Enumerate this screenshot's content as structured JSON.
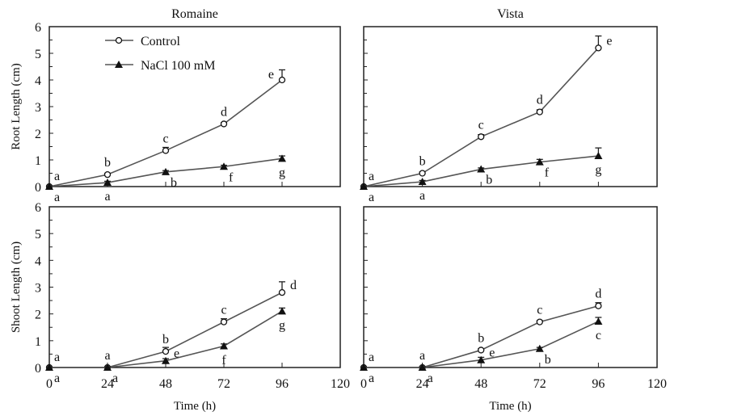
{
  "chart_data": [
    {
      "type": "line",
      "title": "Romaine",
      "xlabel": "",
      "ylabel": "Root Length (cm)",
      "xlim": [
        0,
        120
      ],
      "ylim": [
        0,
        6
      ],
      "xticks": [
        0,
        24,
        48,
        72,
        96,
        120
      ],
      "yticks": [
        0,
        1,
        2,
        3,
        4,
        5,
        6
      ],
      "x": [
        0,
        24,
        48,
        72,
        96
      ],
      "series": [
        {
          "name": "Control",
          "marker": "open-circle",
          "values": [
            0,
            0.45,
            1.35,
            2.35,
            4.0
          ],
          "error": [
            0.03,
            0.05,
            0.12,
            0.05,
            0.38
          ],
          "letters": [
            "a",
            "b",
            "c",
            "d",
            "e"
          ],
          "letter_pos": [
            "above-right",
            "above",
            "above",
            "above",
            "left"
          ]
        },
        {
          "name": "NaCl 100 mM",
          "marker": "filled-triangle",
          "values": [
            0,
            0.15,
            0.55,
            0.75,
            1.05
          ],
          "error": [
            0.03,
            0.05,
            0.05,
            0.05,
            0.1
          ],
          "letters": [
            "a",
            "a",
            "b",
            "f",
            "g"
          ],
          "letter_pos": [
            "below-right",
            "below",
            "below-right",
            "below-right",
            "below"
          ]
        }
      ]
    },
    {
      "type": "line",
      "title": "Vista",
      "xlabel": "",
      "ylabel": "",
      "xlim": [
        0,
        120
      ],
      "ylim": [
        0,
        6
      ],
      "xticks": [
        0,
        24,
        48,
        72,
        96,
        120
      ],
      "yticks": [
        0,
        1,
        2,
        3,
        4,
        5,
        6
      ],
      "x": [
        0,
        24,
        48,
        72,
        96
      ],
      "series": [
        {
          "name": "Control",
          "marker": "open-circle",
          "values": [
            0,
            0.5,
            1.87,
            2.8,
            5.2
          ],
          "error": [
            0.03,
            0.05,
            0.08,
            0.08,
            0.45
          ],
          "letters": [
            "a",
            "b",
            "c",
            "d",
            "e"
          ],
          "letter_pos": [
            "above-right",
            "above",
            "above",
            "above",
            "right"
          ]
        },
        {
          "name": "NaCl 100 mM",
          "marker": "filled-triangle",
          "values": [
            0,
            0.18,
            0.65,
            0.92,
            1.15
          ],
          "error": [
            0.03,
            0.05,
            0.05,
            0.1,
            0.3
          ],
          "letters": [
            "a",
            "a",
            "b",
            "f",
            "g"
          ],
          "letter_pos": [
            "below-right",
            "below",
            "below-right",
            "below-right",
            "below"
          ]
        }
      ]
    },
    {
      "type": "line",
      "title": "",
      "xlabel": "Time (h)",
      "ylabel": "Shoot Length (cm)",
      "xlim": [
        0,
        120
      ],
      "ylim": [
        0,
        6
      ],
      "xticks": [
        0,
        24,
        48,
        72,
        96,
        120
      ],
      "yticks": [
        0,
        1,
        2,
        3,
        4,
        5,
        6
      ],
      "x": [
        0,
        24,
        48,
        72,
        96
      ],
      "series": [
        {
          "name": "Control",
          "marker": "open-circle",
          "values": [
            0,
            0,
            0.6,
            1.7,
            2.8
          ],
          "error": [
            0.03,
            0.03,
            0.15,
            0.12,
            0.4
          ],
          "letters": [
            "a",
            "a",
            "b",
            "c",
            "d"
          ],
          "letter_pos": [
            "above-right",
            "above",
            "above",
            "above",
            "right"
          ]
        },
        {
          "name": "NaCl 100 mM",
          "marker": "filled-triangle",
          "values": [
            0,
            0,
            0.25,
            0.8,
            2.1
          ],
          "error": [
            0.03,
            0.03,
            0.08,
            0.08,
            0.12
          ],
          "letters": [
            "a",
            "a",
            "e",
            "f",
            "g"
          ],
          "letter_pos": [
            "below-right",
            "below-right",
            "right",
            "below",
            "below"
          ]
        }
      ]
    },
    {
      "type": "line",
      "title": "",
      "xlabel": "Time (h)",
      "ylabel": "",
      "xlim": [
        0,
        120
      ],
      "ylim": [
        0,
        6
      ],
      "xticks": [
        0,
        24,
        48,
        72,
        96,
        120
      ],
      "yticks": [
        0,
        1,
        2,
        3,
        4,
        5,
        6
      ],
      "x": [
        0,
        24,
        48,
        72,
        96
      ],
      "series": [
        {
          "name": "Control",
          "marker": "open-circle",
          "values": [
            0,
            0,
            0.65,
            1.7,
            2.3
          ],
          "error": [
            0.03,
            0.03,
            0.05,
            0.05,
            0.12
          ],
          "letters": [
            "a",
            "a",
            "b",
            "c",
            "d"
          ],
          "letter_pos": [
            "above-right",
            "above",
            "above",
            "above",
            "above"
          ]
        },
        {
          "name": "NaCl 100 mM",
          "marker": "filled-triangle",
          "values": [
            0,
            0,
            0.28,
            0.7,
            1.72
          ],
          "error": [
            0.03,
            0.03,
            0.1,
            0.05,
            0.15
          ],
          "letters": [
            "a",
            "a",
            "e",
            "b",
            "c"
          ],
          "letter_pos": [
            "below-right",
            "below-right",
            "right",
            "below-right",
            "below"
          ]
        }
      ]
    }
  ],
  "legend": {
    "placement": "top-left",
    "entries": [
      "Control",
      "NaCl 100 mM"
    ]
  },
  "colors": {
    "line": "#555555",
    "marker": "#111111"
  }
}
